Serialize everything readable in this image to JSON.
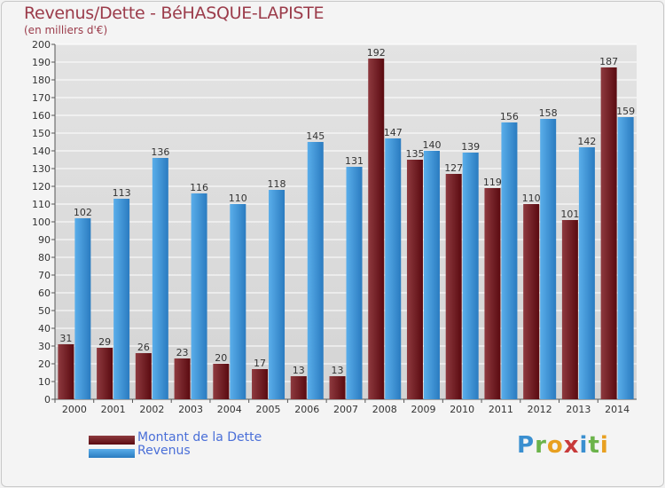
{
  "header": {
    "title": "Revenus/Dette - BéHASQUE-LAPISTE",
    "subtitle": "(en milliers d'€)"
  },
  "legend": {
    "debt_label": "Montant de la Dette",
    "revenue_label": "Revenus"
  },
  "logo": {
    "text": "Proxiti"
  },
  "colors": {
    "debt_dark": "#5a0a10",
    "debt_light": "#8e3a3f",
    "revenue_dark": "#2a7bc0",
    "revenue_light": "#5aaeea",
    "title": "#9b3b4a",
    "grid": "#ffffff"
  },
  "chart_data": {
    "type": "bar",
    "categories": [
      "2000",
      "2001",
      "2002",
      "2003",
      "2004",
      "2005",
      "2006",
      "2007",
      "2008",
      "2009",
      "2010",
      "2011",
      "2012",
      "2013",
      "2014"
    ],
    "series": [
      {
        "name": "Montant de la Dette",
        "values": [
          31,
          29,
          26,
          23,
          20,
          17,
          13,
          13,
          192,
          135,
          127,
          119,
          110,
          101,
          187
        ]
      },
      {
        "name": "Revenus",
        "values": [
          102,
          113,
          136,
          116,
          110,
          118,
          145,
          131,
          147,
          140,
          139,
          156,
          158,
          142,
          159
        ]
      }
    ],
    "ylim": [
      0,
      200
    ],
    "ytick_step": 10,
    "grid": true,
    "legend_position": "bottom-left"
  }
}
